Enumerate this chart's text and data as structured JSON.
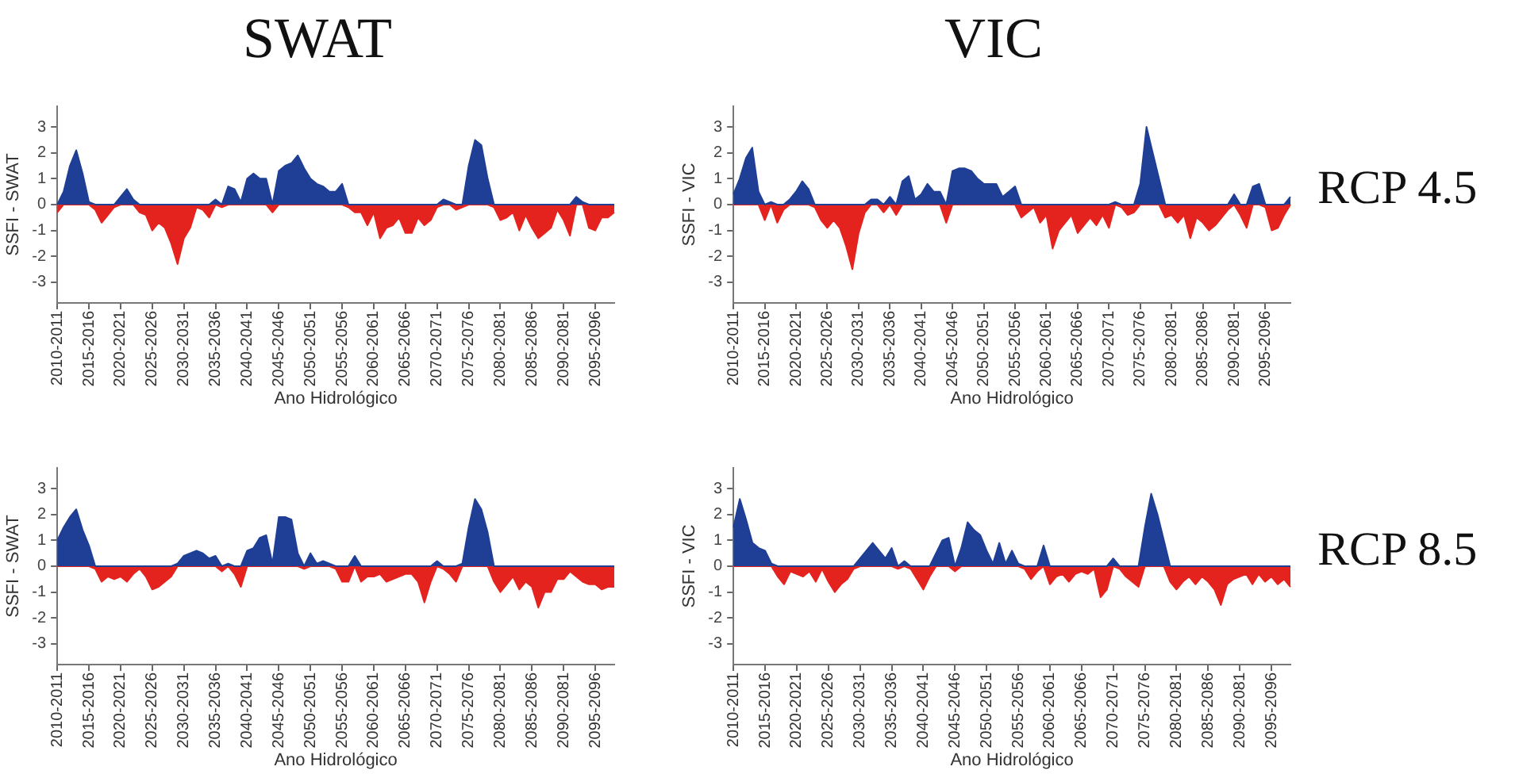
{
  "chart_data": [
    {
      "type": "area",
      "title": "SWAT",
      "xlabel": "Ano Hidrológico",
      "ylabel": "SSFI - SWAT",
      "ylim": [
        -3.8,
        3.8
      ],
      "yticks": [
        -3,
        -2,
        -1,
        0,
        1,
        2,
        3
      ],
      "grid": false,
      "categories": [
        "2010-2011",
        null,
        null,
        null,
        null,
        "2015-2016",
        null,
        null,
        null,
        null,
        "2020-2021",
        null,
        null,
        null,
        null,
        "2025-2026",
        null,
        null,
        null,
        null,
        "2030-2031",
        null,
        null,
        null,
        null,
        "2035-2036",
        null,
        null,
        null,
        null,
        "2040-2041",
        null,
        null,
        null,
        null,
        "2045-2046",
        null,
        null,
        null,
        null,
        "2050-2051",
        null,
        null,
        null,
        null,
        "2055-2056",
        null,
        null,
        null,
        null,
        "2060-2061",
        null,
        null,
        null,
        null,
        "2065-2066",
        null,
        null,
        null,
        null,
        "2070-2071",
        null,
        null,
        null,
        null,
        "2075-2076",
        null,
        null,
        null,
        null,
        "2080-2081",
        null,
        null,
        null,
        null,
        "2085-2086",
        null,
        null,
        null,
        null,
        "2090-2081",
        null,
        null,
        null,
        null,
        "2095-2096",
        null,
        null,
        null
      ],
      "series": [
        {
          "color": "#1f3e96",
          "values": [
            0,
            0.5,
            1.5,
            2.1,
            1.2,
            0.1,
            0,
            0,
            0,
            0,
            0.3,
            0.6,
            0.2,
            0,
            0,
            0,
            0,
            0,
            0,
            0,
            0,
            0,
            0,
            0,
            0,
            0.2,
            0,
            0.7,
            0.6,
            0.1,
            1.0,
            1.2,
            1.0,
            1.0,
            0,
            1.3,
            1.5,
            1.6,
            1.9,
            1.4,
            1.0,
            0.8,
            0.7,
            0.5,
            0.5,
            0.8,
            0,
            0,
            0,
            0,
            0,
            0,
            0,
            0,
            0,
            0,
            0,
            0,
            0,
            0,
            0,
            0.2,
            0.1,
            0,
            0,
            1.5,
            2.5,
            2.3,
            1.0,
            0,
            0,
            0,
            0,
            0,
            0,
            0,
            0,
            0,
            0,
            0,
            0,
            0,
            0.3,
            0.1,
            0,
            0,
            0,
            0,
            0
          ]
        },
        {
          "color": "#e4231f",
          "values": [
            -0.3,
            0,
            0,
            0,
            0,
            0,
            -0.2,
            -0.7,
            -0.4,
            -0.1,
            0,
            0,
            0,
            -0.3,
            -0.4,
            -1.0,
            -0.7,
            -0.9,
            -1.5,
            -2.3,
            -1.3,
            -0.9,
            -0.1,
            -0.2,
            -0.5,
            0,
            -0.1,
            0,
            0,
            0,
            0,
            0,
            0,
            0,
            -0.3,
            0,
            0,
            0,
            0,
            0,
            0,
            0,
            0,
            0,
            0,
            0,
            -0.1,
            -0.3,
            -0.3,
            -0.8,
            -0.3,
            -1.3,
            -0.9,
            -0.8,
            -0.5,
            -1.1,
            -1.1,
            -0.5,
            -0.8,
            -0.6,
            -0.1,
            0,
            0,
            -0.2,
            -0.1,
            0,
            0,
            0,
            0,
            -0.1,
            -0.6,
            -0.5,
            -0.3,
            -1.0,
            -0.4,
            -0.9,
            -1.3,
            -1.1,
            -0.9,
            -0.2,
            -0.6,
            -1.2,
            0,
            0,
            -0.9,
            -1.0,
            -0.5,
            -0.5,
            -0.3
          ]
        }
      ]
    },
    {
      "type": "area",
      "title": "VIC",
      "annotations": [
        "RCP 4.5"
      ],
      "xlabel": "Ano Hidrológico",
      "ylabel": "SSFI - VIC",
      "ylim": [
        -3.8,
        3.8
      ],
      "yticks": [
        -3,
        -2,
        -1,
        0,
        1,
        2,
        3
      ],
      "grid": false,
      "categories": [
        "2010-2011",
        null,
        null,
        null,
        null,
        "2015-2016",
        null,
        null,
        null,
        null,
        "2020-2021",
        null,
        null,
        null,
        null,
        "2025-2026",
        null,
        null,
        null,
        null,
        "2030-2031",
        null,
        null,
        null,
        null,
        "2035-2036",
        null,
        null,
        null,
        null,
        "2040-2041",
        null,
        null,
        null,
        null,
        "2045-2046",
        null,
        null,
        null,
        null,
        "2050-2051",
        null,
        null,
        null,
        null,
        "2055-2056",
        null,
        null,
        null,
        null,
        "2060-2061",
        null,
        null,
        null,
        null,
        "2065-2066",
        null,
        null,
        null,
        null,
        "2070-2071",
        null,
        null,
        null,
        null,
        "2075-2076",
        null,
        null,
        null,
        null,
        "2080-2081",
        null,
        null,
        null,
        null,
        "2085-2086",
        null,
        null,
        null,
        null,
        "2090-2081",
        null,
        null,
        null,
        null,
        "2095-2096",
        null,
        null,
        null,
        null
      ],
      "series": [
        {
          "color": "#1f3e96",
          "values": [
            0.4,
            1.0,
            1.8,
            2.2,
            0.5,
            0,
            0.1,
            0,
            0,
            0.2,
            0.5,
            0.9,
            0.6,
            0,
            0,
            0,
            0,
            0,
            0,
            0,
            0,
            0,
            0.2,
            0.2,
            0,
            0.3,
            0,
            0.9,
            1.1,
            0.2,
            0.4,
            0.8,
            0.5,
            0.5,
            0,
            1.3,
            1.4,
            1.4,
            1.3,
            1.0,
            0.8,
            0.8,
            0.8,
            0.3,
            0.5,
            0.7,
            0,
            0,
            0,
            0,
            0,
            0,
            0,
            0,
            0,
            0,
            0,
            0,
            0,
            0,
            0,
            0.1,
            0,
            0,
            0,
            0.8,
            3.0,
            2.0,
            1.0,
            0,
            0,
            0,
            0,
            0,
            0,
            0,
            0,
            0,
            0,
            0,
            0.4,
            0,
            0,
            0.7,
            0.8,
            0,
            0,
            0,
            0,
            0.3
          ]
        },
        {
          "color": "#e4231f",
          "values": [
            0,
            0,
            0,
            0,
            0,
            -0.6,
            0,
            -0.7,
            -0.2,
            0,
            0,
            0,
            0,
            -0.1,
            -0.6,
            -0.9,
            -0.6,
            -0.9,
            -1.6,
            -2.5,
            -1.1,
            -0.3,
            0,
            0,
            -0.3,
            0,
            -0.4,
            0,
            0,
            0,
            0,
            0,
            0,
            0,
            -0.7,
            0,
            0,
            0,
            0,
            0,
            0,
            0,
            0,
            0,
            0,
            0,
            -0.5,
            -0.3,
            -0.1,
            -0.7,
            -0.4,
            -1.7,
            -1.0,
            -0.7,
            -0.4,
            -1.1,
            -0.8,
            -0.5,
            -0.8,
            -0.4,
            -0.9,
            0,
            -0.1,
            -0.4,
            -0.3,
            0,
            0,
            0,
            0,
            -0.5,
            -0.4,
            -0.7,
            -0.4,
            -1.3,
            -0.5,
            -0.7,
            -1.0,
            -0.8,
            -0.5,
            -0.2,
            0,
            -0.4,
            -0.9,
            0,
            0,
            -0.1,
            -1.0,
            -0.9,
            -0.4,
            0
          ]
        }
      ]
    },
    {
      "type": "area",
      "xlabel": "Ano Hidrológico",
      "ylabel": "SSFI - SWAT",
      "ylim": [
        -3.8,
        3.8
      ],
      "yticks": [
        -3,
        -2,
        -1,
        0,
        1,
        2,
        3
      ],
      "grid": false,
      "categories": [
        "2010-2011",
        null,
        null,
        null,
        null,
        "2015-2016",
        null,
        null,
        null,
        null,
        "2020-2021",
        null,
        null,
        null,
        null,
        "2025-2026",
        null,
        null,
        null,
        null,
        "2030-2031",
        null,
        null,
        null,
        null,
        "2035-2036",
        null,
        null,
        null,
        null,
        "2040-2041",
        null,
        null,
        null,
        null,
        "2045-2046",
        null,
        null,
        null,
        null,
        "2050-2051",
        null,
        null,
        null,
        null,
        "2055-2056",
        null,
        null,
        null,
        null,
        "2060-2061",
        null,
        null,
        null,
        null,
        "2065-2066",
        null,
        null,
        null,
        null,
        "2070-2071",
        null,
        null,
        null,
        null,
        "2075-2076",
        null,
        null,
        null,
        null,
        "2080-2081",
        null,
        null,
        null,
        null,
        "2085-2086",
        null,
        null,
        null,
        null,
        "2090-2081",
        null,
        null,
        null,
        null,
        "2095-2096",
        null,
        null,
        null
      ],
      "series": [
        {
          "color": "#1f3e96",
          "values": [
            1.0,
            1.5,
            1.9,
            2.2,
            1.4,
            0.8,
            0,
            0,
            0,
            0,
            0,
            0,
            0,
            0,
            0,
            0,
            0,
            0,
            0,
            0.1,
            0.4,
            0.5,
            0.6,
            0.5,
            0.3,
            0.4,
            0,
            0.1,
            0,
            0,
            0.6,
            0.7,
            1.1,
            1.2,
            0.1,
            1.9,
            1.9,
            1.8,
            0.5,
            0,
            0.5,
            0.1,
            0.2,
            0.1,
            0,
            0,
            0,
            0.4,
            0,
            0,
            0,
            0,
            0,
            0,
            0,
            0,
            0,
            0,
            0,
            0,
            0.2,
            0,
            0,
            0,
            0.1,
            1.5,
            2.6,
            2.2,
            1.3,
            0,
            0,
            0,
            0,
            0,
            0,
            0,
            0,
            0,
            0,
            0,
            0,
            0,
            0,
            0,
            0,
            0,
            0,
            0,
            0
          ]
        },
        {
          "color": "#e4231f",
          "values": [
            0,
            0,
            0,
            0,
            0,
            0,
            -0.1,
            -0.6,
            -0.4,
            -0.5,
            -0.4,
            -0.6,
            -0.3,
            -0.1,
            -0.4,
            -0.9,
            -0.8,
            -0.6,
            -0.4,
            0,
            0,
            0,
            0,
            0,
            0,
            0,
            -0.2,
            0,
            -0.3,
            -0.8,
            0,
            0,
            0,
            0,
            0,
            0,
            0,
            0,
            0,
            -0.1,
            0,
            0,
            0,
            0,
            -0.1,
            -0.6,
            -0.6,
            0,
            -0.6,
            -0.4,
            -0.4,
            -0.3,
            -0.6,
            -0.5,
            -0.4,
            -0.3,
            -0.3,
            -0.6,
            -1.4,
            -0.6,
            0,
            -0.1,
            -0.3,
            -0.6,
            0,
            0,
            0,
            0,
            0,
            -0.6,
            -1.0,
            -0.7,
            -0.4,
            -0.9,
            -0.6,
            -0.8,
            -1.6,
            -1.0,
            -1.0,
            -0.5,
            -0.5,
            -0.2,
            -0.4,
            -0.6,
            -0.7,
            -0.7,
            -0.9,
            -0.8,
            -0.8
          ]
        }
      ]
    },
    {
      "type": "area",
      "annotations": [
        "RCP 8.5"
      ],
      "xlabel": "Ano Hidrológico",
      "ylabel": "SSFI - VIC",
      "ylim": [
        -3.8,
        3.8
      ],
      "yticks": [
        -3,
        -2,
        -1,
        0,
        1,
        2,
        3
      ],
      "grid": false,
      "categories": [
        "2010-2011",
        null,
        null,
        null,
        null,
        "2015-2016",
        null,
        null,
        null,
        null,
        "2020-2021",
        null,
        null,
        null,
        null,
        "2025-2026",
        null,
        null,
        null,
        null,
        "2030-2031",
        null,
        null,
        null,
        null,
        "2035-2036",
        null,
        null,
        null,
        null,
        "2040-2041",
        null,
        null,
        null,
        null,
        "2045-2046",
        null,
        null,
        null,
        null,
        "2050-2051",
        null,
        null,
        null,
        null,
        "2055-2056",
        null,
        null,
        null,
        null,
        "2060-2061",
        null,
        null,
        null,
        null,
        "2065-2066",
        null,
        null,
        null,
        null,
        "2070-2071",
        null,
        null,
        null,
        null,
        "2075-2076",
        null,
        null,
        null,
        null,
        "2080-2081",
        null,
        null,
        null,
        null,
        "2085-2086",
        null,
        null,
        null,
        null,
        "2090-2081",
        null,
        null,
        null,
        null,
        "2095-2096",
        null,
        null,
        null
      ],
      "series": [
        {
          "color": "#1f3e96",
          "values": [
            1.5,
            2.6,
            1.8,
            0.9,
            0.7,
            0.6,
            0.1,
            0,
            0,
            0,
            0,
            0,
            0,
            0,
            0,
            0,
            0,
            0,
            0,
            0,
            0.3,
            0.6,
            0.9,
            0.6,
            0.3,
            0.7,
            0,
            0.2,
            0,
            0,
            0,
            0,
            0.5,
            1.0,
            1.1,
            0,
            0.7,
            1.7,
            1.4,
            1.2,
            0.6,
            0.1,
            0.9,
            0.1,
            0.6,
            0.1,
            0,
            0,
            0,
            0.8,
            0,
            0,
            0,
            0,
            0,
            0,
            0,
            0,
            0,
            0,
            0.3,
            0,
            0,
            0,
            0,
            1.5,
            2.8,
            2.0,
            1.0,
            0,
            0,
            0,
            0,
            0,
            0,
            0,
            0,
            0,
            0,
            0,
            0,
            0,
            0,
            0,
            0,
            0,
            0,
            0,
            0
          ]
        },
        {
          "color": "#e4231f",
          "values": [
            0,
            0,
            0,
            0,
            0,
            0,
            0,
            -0.4,
            -0.7,
            -0.2,
            -0.3,
            -0.4,
            -0.2,
            -0.6,
            -0.1,
            -0.6,
            -1.0,
            -0.7,
            -0.5,
            -0.1,
            0,
            0,
            0,
            0,
            0,
            0,
            -0.1,
            0,
            -0.1,
            -0.5,
            -0.9,
            -0.4,
            0,
            0,
            0,
            -0.2,
            0,
            0,
            0,
            0,
            0,
            0,
            0,
            0,
            0,
            0,
            -0.1,
            -0.5,
            -0.2,
            0,
            -0.7,
            -0.4,
            -0.3,
            -0.6,
            -0.3,
            -0.2,
            -0.3,
            -0.1,
            -1.2,
            -0.9,
            0,
            -0.1,
            -0.4,
            -0.6,
            -0.8,
            0,
            0,
            0,
            0,
            -0.6,
            -0.9,
            -0.6,
            -0.4,
            -0.7,
            -0.4,
            -0.6,
            -0.9,
            -1.5,
            -0.7,
            -0.5,
            -0.4,
            -0.3,
            -0.7,
            -0.3,
            -0.6,
            -0.4,
            -0.7,
            -0.5,
            -0.8
          ]
        }
      ]
    }
  ]
}
